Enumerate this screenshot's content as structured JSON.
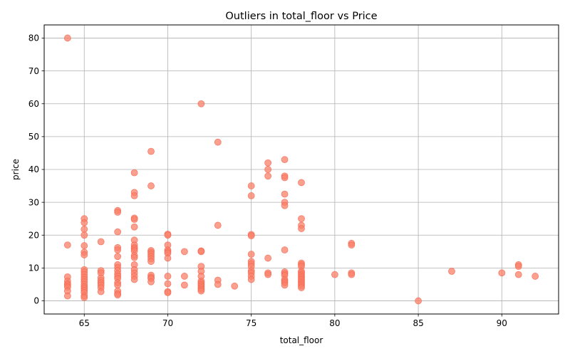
{
  "chart_data": {
    "type": "scatter",
    "title": "Outliers in total_floor vs Price",
    "xlabel": "total_floor",
    "ylabel": "price",
    "xlim": [
      62.6,
      93.4
    ],
    "ylim": [
      -4,
      84
    ],
    "xticks": [
      65,
      70,
      75,
      80,
      85,
      90
    ],
    "yticks": [
      0,
      10,
      20,
      30,
      40,
      50,
      60,
      70,
      80
    ],
    "grid": true,
    "marker_color": "#fa8069",
    "marker_edge_color": "#f4634b",
    "series": [
      {
        "points": [
          [
            64,
            80
          ],
          [
            64,
            17
          ],
          [
            64,
            7.3
          ],
          [
            64,
            6
          ],
          [
            64,
            5.2
          ],
          [
            64,
            4.8
          ],
          [
            64,
            4.2
          ],
          [
            64,
            3
          ],
          [
            64,
            1.5
          ],
          [
            65,
            25
          ],
          [
            65,
            23.8
          ],
          [
            65,
            21.8
          ],
          [
            65,
            20
          ],
          [
            65,
            16.8
          ],
          [
            65,
            14.8
          ],
          [
            65,
            14
          ],
          [
            65,
            9.5
          ],
          [
            65,
            8.8
          ],
          [
            65,
            8
          ],
          [
            65,
            7.2
          ],
          [
            65,
            6.5
          ],
          [
            65,
            5.8
          ],
          [
            65,
            5
          ],
          [
            65,
            4.3
          ],
          [
            65,
            3.8
          ],
          [
            65,
            3.2
          ],
          [
            65,
            2.5
          ],
          [
            65,
            1.5
          ],
          [
            65,
            1
          ],
          [
            66,
            18
          ],
          [
            66,
            9.2
          ],
          [
            66,
            8.5
          ],
          [
            66,
            7
          ],
          [
            66,
            6.2
          ],
          [
            66,
            5.5
          ],
          [
            66,
            4.8
          ],
          [
            66,
            4
          ],
          [
            66,
            2.8
          ],
          [
            67,
            27.5
          ],
          [
            67,
            27
          ],
          [
            67,
            21
          ],
          [
            67,
            16.2
          ],
          [
            67,
            15.5
          ],
          [
            67,
            13.5
          ],
          [
            67,
            11
          ],
          [
            67,
            10.2
          ],
          [
            67,
            9.2
          ],
          [
            67,
            8.2
          ],
          [
            67,
            7.5
          ],
          [
            67,
            6.8
          ],
          [
            67,
            5.5
          ],
          [
            67,
            4.8
          ],
          [
            67,
            3
          ],
          [
            67,
            2.2
          ],
          [
            67,
            1.8
          ],
          [
            68,
            39
          ],
          [
            68,
            33
          ],
          [
            68,
            32
          ],
          [
            68,
            25.2
          ],
          [
            68,
            24.8
          ],
          [
            68,
            22.5
          ],
          [
            68,
            18.5
          ],
          [
            68,
            17
          ],
          [
            68,
            16.2
          ],
          [
            68,
            15.8
          ],
          [
            68,
            15.2
          ],
          [
            68,
            13.8
          ],
          [
            68,
            13.2
          ],
          [
            68,
            11
          ],
          [
            68,
            9.5
          ],
          [
            68,
            8.5
          ],
          [
            68,
            7.5
          ],
          [
            68,
            6.5
          ],
          [
            69,
            45.5
          ],
          [
            69,
            35
          ],
          [
            69,
            15.3
          ],
          [
            69,
            14.8
          ],
          [
            69,
            14.2
          ],
          [
            69,
            13.5
          ],
          [
            69,
            12.8
          ],
          [
            69,
            12
          ],
          [
            69,
            7.8
          ],
          [
            69,
            7.2
          ],
          [
            69,
            6.8
          ],
          [
            69,
            5.8
          ],
          [
            70,
            20.3
          ],
          [
            70,
            20
          ],
          [
            70,
            17
          ],
          [
            70,
            15.5
          ],
          [
            70,
            15
          ],
          [
            70,
            14.5
          ],
          [
            70,
            13
          ],
          [
            70,
            7.5
          ],
          [
            70,
            5.2
          ],
          [
            70,
            2.8
          ],
          [
            70,
            2.5
          ],
          [
            71,
            15
          ],
          [
            71,
            7.5
          ],
          [
            71,
            4.8
          ],
          [
            72,
            60
          ],
          [
            72,
            15.2
          ],
          [
            72,
            15
          ],
          [
            72,
            10.5
          ],
          [
            72,
            9
          ],
          [
            72,
            7.5
          ],
          [
            72,
            6
          ],
          [
            72,
            5.5
          ],
          [
            72,
            5
          ],
          [
            72,
            4.5
          ],
          [
            72,
            4
          ],
          [
            72,
            3.5
          ],
          [
            72,
            3
          ],
          [
            73,
            48.3
          ],
          [
            73,
            23
          ],
          [
            73,
            6.3
          ],
          [
            73,
            5
          ],
          [
            74,
            4.5
          ],
          [
            75,
            35
          ],
          [
            75,
            32
          ],
          [
            75,
            20.2
          ],
          [
            75,
            19.8
          ],
          [
            75,
            14.2
          ],
          [
            75,
            12
          ],
          [
            75,
            11.3
          ],
          [
            75,
            10.5
          ],
          [
            75,
            9.2
          ],
          [
            75,
            8.5
          ],
          [
            75,
            7.5
          ],
          [
            75,
            6.5
          ],
          [
            76,
            42
          ],
          [
            76,
            40
          ],
          [
            76,
            38
          ],
          [
            76,
            13
          ],
          [
            76,
            8.5
          ],
          [
            76,
            8
          ],
          [
            77,
            43
          ],
          [
            77,
            38
          ],
          [
            77,
            37.5
          ],
          [
            77,
            32.5
          ],
          [
            77,
            30
          ],
          [
            77,
            29
          ],
          [
            77,
            15.5
          ],
          [
            77,
            8.8
          ],
          [
            77,
            8.3
          ],
          [
            77,
            7.8
          ],
          [
            77,
            6.5
          ],
          [
            77,
            6
          ],
          [
            77,
            5.5
          ],
          [
            77,
            4.8
          ],
          [
            78,
            36
          ],
          [
            78,
            25
          ],
          [
            78,
            23
          ],
          [
            78,
            22
          ],
          [
            78,
            11.5
          ],
          [
            78,
            11
          ],
          [
            78,
            10.5
          ],
          [
            78,
            9
          ],
          [
            78,
            8.5
          ],
          [
            78,
            8
          ],
          [
            78,
            7.5
          ],
          [
            78,
            7
          ],
          [
            78,
            6.5
          ],
          [
            78,
            6
          ],
          [
            78,
            5.5
          ],
          [
            78,
            5
          ],
          [
            78,
            4.5
          ],
          [
            78,
            4
          ],
          [
            80,
            8
          ],
          [
            81,
            17.5
          ],
          [
            81,
            17
          ],
          [
            81,
            8.5
          ],
          [
            81,
            8
          ],
          [
            85,
            0
          ],
          [
            87,
            9
          ],
          [
            90,
            8.5
          ],
          [
            91,
            11
          ],
          [
            91,
            10.5
          ],
          [
            91,
            8
          ],
          [
            92,
            7.5
          ]
        ]
      }
    ]
  }
}
